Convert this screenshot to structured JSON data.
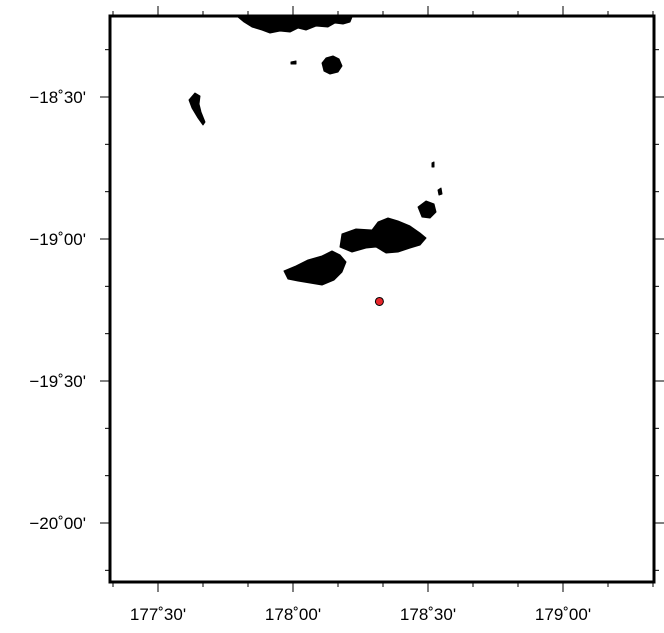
{
  "map": {
    "x_ticks": [
      {
        "label": "177˚30'",
        "lon": 177.5
      },
      {
        "label": "178˚00'",
        "lon": 178.0
      },
      {
        "label": "178˚30'",
        "lon": 178.5
      },
      {
        "label": "179˚00'",
        "lon": 179.0
      }
    ],
    "y_ticks": [
      {
        "label": "−18˚30'",
        "lat": -18.5
      },
      {
        "label": "−19˚00'",
        "lat": -19.0
      },
      {
        "label": "−19˚30'",
        "lat": -19.5
      },
      {
        "label": "−20˚00'",
        "lat": -20.0
      }
    ],
    "marker": {
      "lon": 178.32,
      "lat": -19.22,
      "color": "#e8262b"
    },
    "land_color": "#000000"
  }
}
